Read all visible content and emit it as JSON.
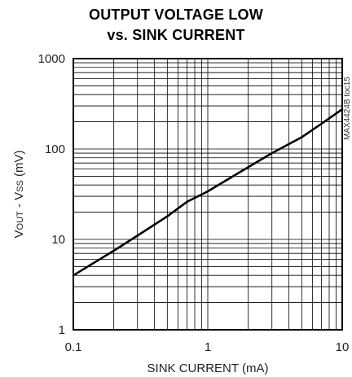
{
  "chart_data": {
    "type": "line",
    "title_lines": [
      "OUTPUT VOLTAGE LOW",
      "vs. SINK CURRENT"
    ],
    "xlabel": "SINK CURRENT (mA)",
    "ylabel": {
      "base": "V",
      "sub1": "OUT",
      "mid": " - V",
      "sub2": "SS",
      "unit": " (mV)"
    },
    "x_scale": "log",
    "y_scale": "log",
    "xlim": [
      0.1,
      10
    ],
    "ylim": [
      1,
      1000
    ],
    "x_ticks": [
      {
        "value": 0.1,
        "label": "0.1"
      },
      {
        "value": 1,
        "label": "1"
      },
      {
        "value": 10,
        "label": "10"
      }
    ],
    "y_ticks": [
      {
        "value": 1,
        "label": "1"
      },
      {
        "value": 10,
        "label": "10"
      },
      {
        "value": 100,
        "label": "100"
      },
      {
        "value": 1000,
        "label": "1000"
      }
    ],
    "grid": true,
    "series": [
      {
        "x": [
          0.1,
          0.2,
          0.3,
          0.5,
          0.7,
          1,
          2,
          3,
          5,
          7,
          10
        ],
        "y": [
          4,
          7.5,
          11,
          18,
          26,
          34,
          63,
          90,
          135,
          190,
          275
        ]
      }
    ],
    "annotation": "MAX4424B toc15"
  }
}
